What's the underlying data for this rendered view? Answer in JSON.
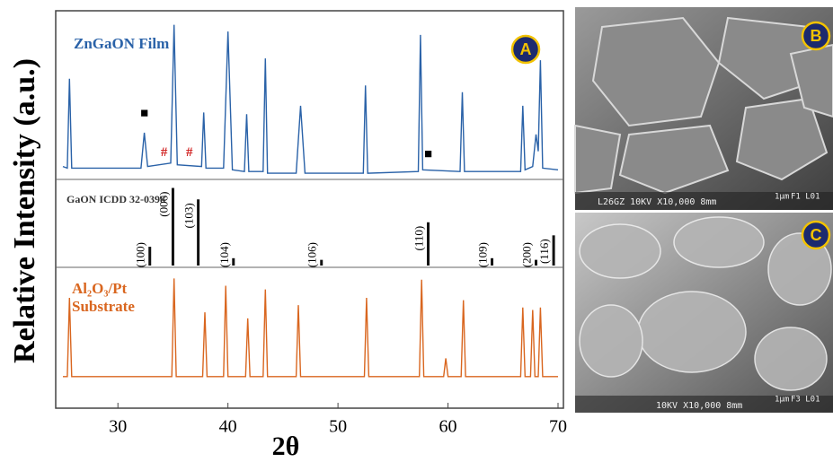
{
  "chart_data": {
    "type": "line",
    "panel_label": "A",
    "xlabel": "2θ",
    "ylabel": "Relative Intensity (a.u.)",
    "xlim": [
      25,
      70
    ],
    "xticks": [
      30,
      40,
      50,
      60,
      70
    ],
    "series": [
      {
        "name": "ZnGaON Film",
        "color": "#2a62a8",
        "ylim": [
          0,
          100
        ],
        "x": [
          25,
          25.4,
          25.6,
          25.8,
          32.1,
          32.4,
          32.7,
          34.8,
          35.1,
          35.4,
          37.6,
          37.8,
          38.0,
          39.6,
          40.0,
          40.4,
          41.5,
          41.7,
          41.9,
          43.2,
          43.4,
          43.6,
          46.2,
          46.6,
          47.0,
          52.3,
          52.5,
          52.7,
          57.3,
          57.5,
          57.7,
          61.1,
          61.3,
          61.5,
          66.6,
          66.8,
          67.0,
          67.7,
          68.0,
          68.2,
          68.4,
          68.6,
          70
        ],
        "values": [
          13,
          12,
          65,
          12,
          12,
          33,
          13,
          15,
          97,
          14,
          13,
          45,
          12,
          12,
          93,
          11,
          10,
          44,
          10,
          10,
          77,
          9,
          9,
          49,
          9,
          9,
          61,
          9,
          10,
          91,
          11,
          10,
          57,
          10,
          10,
          49,
          11,
          13,
          32,
          22,
          76,
          12,
          11
        ]
      },
      {
        "name": "Al₂O₃/Pt Substrate",
        "color": "#d9661f",
        "ylim": [
          0,
          100
        ],
        "x": [
          25,
          25.4,
          25.6,
          25.8,
          34.9,
          35.1,
          35.3,
          37.7,
          37.9,
          38.1,
          39.6,
          39.8,
          40.0,
          41.6,
          41.8,
          42.0,
          43.2,
          43.4,
          43.6,
          46.2,
          46.4,
          46.6,
          52.4,
          52.6,
          52.8,
          57.4,
          57.6,
          57.8,
          59.6,
          59.8,
          60.0,
          61.2,
          61.4,
          61.6,
          66.6,
          66.8,
          67.0,
          67.5,
          67.7,
          67.9,
          68.2,
          68.4,
          68.6,
          70
        ],
        "values": [
          15,
          15,
          80,
          15,
          15,
          96,
          15,
          15,
          68,
          15,
          15,
          90,
          15,
          15,
          63,
          15,
          15,
          87,
          15,
          15,
          74,
          15,
          15,
          80,
          15,
          15,
          95,
          15,
          15,
          30,
          15,
          15,
          78,
          15,
          15,
          72,
          15,
          15,
          70,
          15,
          15,
          72,
          15,
          15
        ]
      }
    ],
    "reference": {
      "name": "GaON ICDD 32-0398",
      "color": "#111111",
      "ylim": [
        0,
        100
      ],
      "x": [
        32.9,
        35.0,
        37.3,
        40.5,
        48.5,
        58.2,
        64.0,
        68.0,
        69.6
      ],
      "values": [
        23,
        95,
        81,
        9,
        7,
        53,
        9,
        7,
        37
      ],
      "labels": [
        "(100)",
        "(006)",
        "(103)",
        "(104)",
        "(106)",
        "(110)",
        "(109)",
        "(200)",
        "(116)"
      ]
    },
    "annotations": [
      {
        "text": "■",
        "x": 32.4,
        "y": 44,
        "color": "#000000"
      },
      {
        "text": "#",
        "x": 34.2,
        "y": 21,
        "color": "#d02020"
      },
      {
        "text": "#",
        "x": 36.5,
        "y": 21,
        "color": "#d02020"
      },
      {
        "text": "■",
        "x": 58.2,
        "y": 20,
        "color": "#000000"
      }
    ]
  },
  "images": [
    {
      "label": "B",
      "caption": "L26GZ  10KV  X10,000  8mm",
      "scale": "1μm",
      "code": "F1 L01"
    },
    {
      "label": "C",
      "caption": "10KV  X10,000  8mm",
      "scale": "1μm",
      "code": "F3 L01"
    }
  ]
}
